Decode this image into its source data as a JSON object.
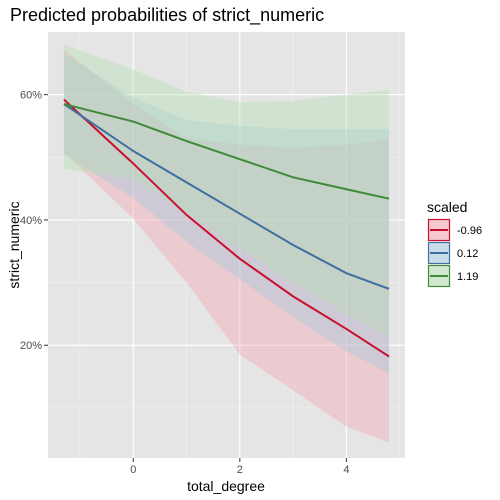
{
  "chart_data": {
    "type": "line",
    "title": "Predicted probabilities of strict_numeric",
    "xlabel": "total_degree",
    "ylabel": "strict_numeric",
    "xlim": [
      -1.6,
      5.1
    ],
    "ylim": [
      0.02,
      0.7
    ],
    "x_ticks": [
      0,
      2,
      4
    ],
    "x_tick_labels": [
      "0",
      "2",
      "4"
    ],
    "y_ticks": [
      0.2,
      0.4,
      0.6
    ],
    "y_tick_labels": [
      "20%",
      "40%",
      "60%"
    ],
    "grid": true,
    "legend": {
      "title": "scaled",
      "position": "right"
    },
    "series": [
      {
        "name": "-0.96",
        "color": "#c8102e",
        "fill": "#f4a0ab",
        "x": [
          -1.3,
          0,
          1,
          2,
          3,
          4,
          4.8
        ],
        "y": [
          0.592,
          0.49,
          0.408,
          0.338,
          0.278,
          0.226,
          0.182
        ],
        "lower": [
          0.508,
          0.402,
          0.3,
          0.185,
          0.128,
          0.07,
          0.045
        ],
        "upper": [
          0.672,
          0.585,
          0.53,
          0.52,
          0.515,
          0.52,
          0.528
        ]
      },
      {
        "name": "0.12",
        "color": "#3d6fa0",
        "fill": "#9ec8df",
        "x": [
          -1.3,
          0,
          1,
          2,
          3,
          4,
          4.8
        ],
        "y": [
          0.585,
          0.51,
          0.46,
          0.41,
          0.36,
          0.315,
          0.29
        ],
        "lower": [
          0.505,
          0.435,
          0.365,
          0.305,
          0.245,
          0.19,
          0.155
        ],
        "upper": [
          0.665,
          0.595,
          0.56,
          0.55,
          0.545,
          0.545,
          0.545
        ]
      },
      {
        "name": "1.19",
        "color": "#3d8b37",
        "fill": "#b2dcae",
        "x": [
          -1.3,
          0,
          1,
          2,
          3,
          4,
          4.8
        ],
        "y": [
          0.585,
          0.557,
          0.526,
          0.497,
          0.468,
          0.449,
          0.434
        ],
        "lower": [
          0.482,
          0.465,
          0.41,
          0.355,
          0.3,
          0.25,
          0.215
        ],
        "upper": [
          0.68,
          0.64,
          0.605,
          0.588,
          0.59,
          0.6,
          0.608
        ]
      }
    ]
  }
}
